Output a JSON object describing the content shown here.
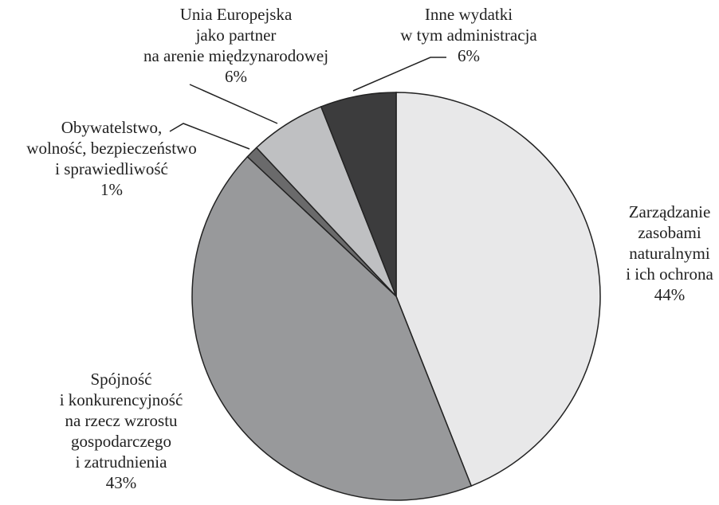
{
  "chart_data": {
    "type": "pie",
    "categories": [
      [
        "Zarządzanie",
        "zasobami",
        "naturalnymi",
        "i ich ochrona"
      ],
      [
        "Spójność",
        "i konkurencyjność",
        "na rzecz wzrostu",
        "gospodarczego",
        "i zatrudnienia"
      ],
      [
        "Obywatelstwo,",
        "wolność, bezpieczeństwo",
        "i sprawiedliwość"
      ],
      [
        "Unia Europejska",
        "jako partner",
        "na arenie międzynarodowej"
      ],
      [
        "Inne wydatki",
        "w tym administracja"
      ]
    ],
    "values": [
      44,
      43,
      1,
      6,
      6
    ],
    "value_labels": [
      "44%",
      "43%",
      "1%",
      "6%",
      "6%"
    ],
    "colors": [
      "#e8e8e9",
      "#98999b",
      "#6a6a6b",
      "#bfc0c2",
      "#3c3c3d"
    ]
  }
}
